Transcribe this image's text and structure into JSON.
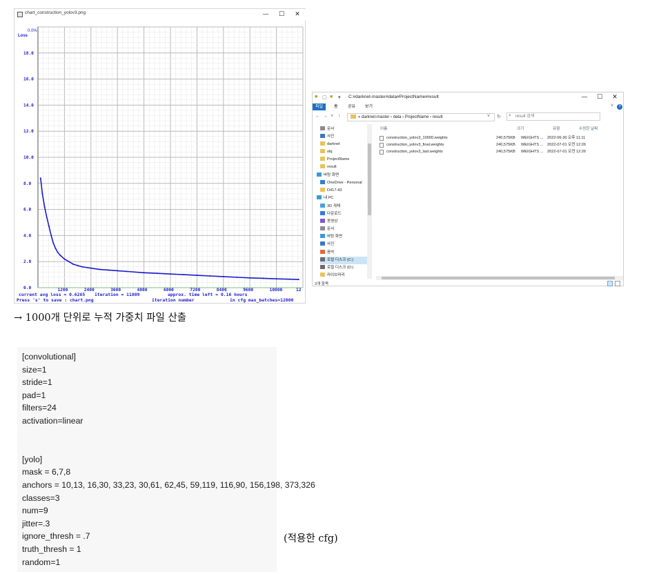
{
  "chart_window": {
    "title": "chart_construction_yolov3.png",
    "controls": {
      "minimize": "—",
      "maximize": "☐",
      "close": "✕"
    },
    "legend_label": "Loss",
    "legend_value": "0.0%",
    "y_ticks": [
      "0.0",
      "2.0",
      "4.0",
      "6.0",
      "8.0",
      "10.0",
      "12.0",
      "14.0",
      "16.0",
      "18.0"
    ],
    "x_ticks": [
      "1200",
      "2400",
      "3600",
      "4800",
      "6000",
      "7200",
      "8400",
      "9600",
      "10800",
      "12"
    ],
    "footer_line1_left": "current avg loss = 0.6265",
    "footer_line1_mid": "iteration = 11809",
    "footer_line1_right": "approx. time left = 0.16 hours",
    "footer_line2_left": "Press 's' to save : chart.png",
    "footer_line2_mid": "iteration number",
    "footer_line2_right": "in cfg max_batches=12000"
  },
  "chart_data": {
    "type": "line",
    "xlabel": "iteration number",
    "ylabel": "Loss",
    "xlim": [
      0,
      12000
    ],
    "ylim": [
      0,
      20
    ],
    "grid": true,
    "series": [
      {
        "name": "",
        "color": "#1a1acc",
        "x": [
          120,
          200,
          300,
          400,
          500,
          600,
          700,
          800,
          900,
          1000,
          1200,
          1400,
          1600,
          1800,
          2000,
          2400,
          2800,
          3200,
          3600,
          4000,
          4800,
          5400,
          6000,
          6600,
          7200,
          7800,
          8400,
          9000,
          9600,
          10200,
          10800,
          11400,
          11809
        ],
        "y": [
          8.4,
          7.2,
          6.2,
          5.4,
          4.7,
          4.0,
          3.4,
          3.0,
          2.7,
          2.5,
          2.2,
          2.0,
          1.8,
          1.7,
          1.6,
          1.5,
          1.4,
          1.35,
          1.3,
          1.25,
          1.15,
          1.1,
          1.05,
          1.0,
          0.95,
          0.9,
          0.85,
          0.8,
          0.75,
          0.72,
          0.68,
          0.65,
          0.63
        ]
      }
    ]
  },
  "explorer": {
    "title": "C:#darknet-master#data#ProjectName#result",
    "controls": {
      "minimize": "—",
      "maximize": "☐",
      "close": "✕"
    },
    "tabs": [
      "파일",
      "홈",
      "공유",
      "보기"
    ],
    "address_parts": [
      "darknet-master",
      "data",
      "ProjectName",
      "result"
    ],
    "address_prefix": "«",
    "search_placeholder": "result 검색",
    "nav_items": [
      {
        "label": "문서",
        "pinned": true,
        "color": "#8c8c8c"
      },
      {
        "label": "사진",
        "pinned": true,
        "color": "#3a78c9"
      },
      {
        "label": "darknet",
        "pinned": false,
        "color": "#e8c35b"
      },
      {
        "label": "obj",
        "pinned": false,
        "color": "#e8c35b"
      },
      {
        "label": "ProjectName",
        "pinned": false,
        "color": "#e8c35b"
      },
      {
        "label": "result",
        "pinned": false,
        "color": "#e8c35b"
      },
      {
        "label": "바탕 화면",
        "pinned": false,
        "color": "#3a9ad9"
      },
      {
        "label": "OneDrive - Personal",
        "pinned": false,
        "color": "#2f7fd6"
      },
      {
        "label": "D417-43",
        "pinned": false,
        "color": "#e8c35b"
      },
      {
        "label": "내 PC",
        "pinned": false,
        "color": "#3a9ad9"
      },
      {
        "label": "3D 개체",
        "pinned": false,
        "color": "#4aa0e0"
      },
      {
        "label": "다운로드",
        "pinned": false,
        "color": "#2f7fd6"
      },
      {
        "label": "동영상",
        "pinned": false,
        "color": "#7a5bc9"
      },
      {
        "label": "문서",
        "pinned": false,
        "color": "#8c8c8c"
      },
      {
        "label": "바탕 화면",
        "pinned": false,
        "color": "#3a9ad9"
      },
      {
        "label": "사진",
        "pinned": false,
        "color": "#3a78c9"
      },
      {
        "label": "음악",
        "pinned": false,
        "color": "#e06b3a"
      },
      {
        "label": "로컬 디스크 (C:)",
        "pinned": false,
        "color": "#6b6b6b"
      },
      {
        "label": "로컬 디스크 (D:)",
        "pinned": false,
        "color": "#6b6b6b"
      },
      {
        "label": "라이브러리",
        "pinned": false,
        "color": "#e8c35b"
      }
    ],
    "nav_pin_glyph": "✎",
    "columns": {
      "name": "이름",
      "size": "크기",
      "type": "유형",
      "date": "수정한 날짜"
    },
    "files": [
      {
        "name": "construction_yolov3_10000.weights",
        "size": "240,575KB",
        "type": "WEIGHTS ...",
        "date": "2022-06-30 오후 11:11"
      },
      {
        "name": "construction_yolov3_final.weights",
        "size": "240,575KB",
        "type": "WEIGHTS ...",
        "date": "2022-07-01 오전 12:26"
      },
      {
        "name": "construction_yolov3_last.weights",
        "size": "240,575KB",
        "type": "WEIGHTS ...",
        "date": "2022-07-01 오전 12:26"
      }
    ],
    "status": "3개 항목"
  },
  "captions": {
    "weights_note": "→ 1000개 단위로 누적 가중치 파일 산출",
    "cfg_note": "(적용한 cfg)"
  },
  "cfg_lines": [
    "[convolutional]",
    "size=1",
    "stride=1",
    "pad=1",
    "filters=24",
    "activation=linear",
    "",
    "",
    "[yolo]",
    "mask = 6,7,8",
    "anchors = 10,13,  16,30,  33,23,  30,61,  62,45,  59,119,  116,90,  156,198,  373,326",
    "classes=3",
    "num=9",
    "jitter=.3",
    "ignore_thresh = .7",
    "truth_thresh = 1",
    "random=1"
  ]
}
